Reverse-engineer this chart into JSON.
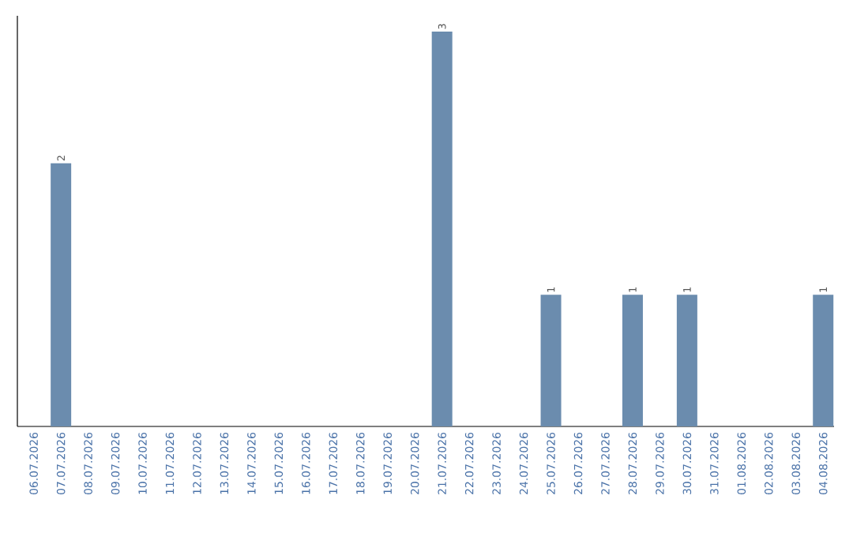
{
  "chart_data": {
    "type": "bar",
    "categories": [
      "06.07.2026",
      "07.07.2026",
      "08.07.2026",
      "09.07.2026",
      "10.07.2026",
      "11.07.2026",
      "12.07.2026",
      "13.07.2026",
      "14.07.2026",
      "15.07.2026",
      "16.07.2026",
      "17.07.2026",
      "18.07.2026",
      "19.07.2026",
      "20.07.2026",
      "21.07.2026",
      "22.07.2026",
      "23.07.2026",
      "24.07.2026",
      "25.07.2026",
      "26.07.2026",
      "27.07.2026",
      "28.07.2026",
      "29.07.2026",
      "30.07.2026",
      "31.07.2026",
      "01.08.2026",
      "02.08.2026",
      "03.08.2026",
      "04.08.2026"
    ],
    "values": [
      0,
      2,
      0,
      0,
      0,
      0,
      0,
      0,
      0,
      0,
      0,
      0,
      0,
      0,
      0,
      3,
      0,
      0,
      0,
      1,
      0,
      0,
      1,
      0,
      1,
      0,
      0,
      0,
      0,
      1
    ],
    "value_labels": [
      null,
      "2",
      null,
      null,
      null,
      null,
      null,
      null,
      null,
      null,
      null,
      null,
      null,
      null,
      null,
      "3",
      null,
      null,
      null,
      "1",
      null,
      null,
      "1",
      null,
      "1",
      null,
      null,
      null,
      null,
      "1"
    ],
    "color": "#6b8cae"
  }
}
